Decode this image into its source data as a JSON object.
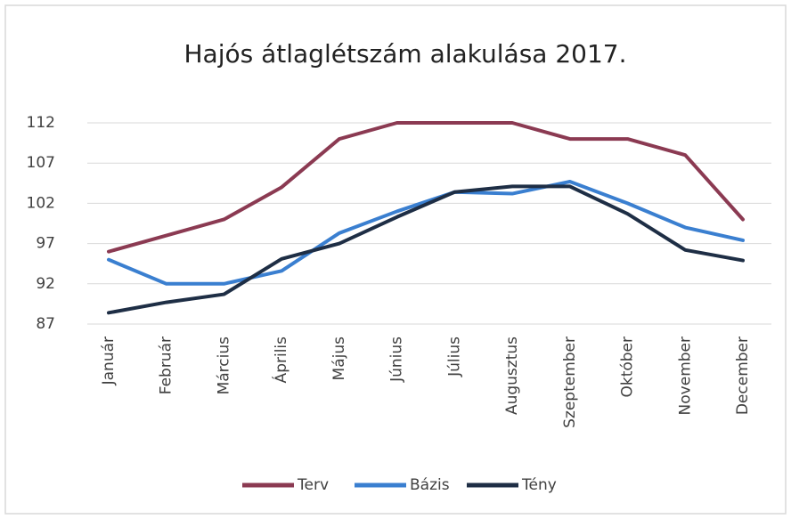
{
  "chart_data": {
    "type": "line",
    "title": "Hajós átlaglétszám alakulása 2017.",
    "categories": [
      "Január",
      "Február",
      "Március",
      "Április",
      "Május",
      "Június",
      "Július",
      "Augusztus",
      "Szeptember",
      "Október",
      "November",
      "December"
    ],
    "series": [
      {
        "name": "Terv",
        "color": "#8b3a52",
        "values": [
          96,
          98,
          100,
          104,
          110,
          112,
          112,
          112,
          110,
          110,
          108,
          100
        ]
      },
      {
        "name": "Bázis",
        "color": "#3a7fd0",
        "values": [
          95,
          92,
          92,
          93.6,
          98.3,
          101,
          103.4,
          103.2,
          104.7,
          102,
          99,
          97.4
        ]
      },
      {
        "name": "Tény",
        "color": "#1e2e45",
        "values": [
          88.4,
          89.7,
          90.7,
          95.1,
          97,
          100.3,
          103.4,
          104.1,
          104.1,
          100.7,
          96.2,
          94.9
        ]
      }
    ],
    "ylim": [
      87,
      112
    ],
    "yticks": [
      87,
      92,
      97,
      102,
      107,
      112
    ],
    "grid": true,
    "legend": "bottom"
  }
}
